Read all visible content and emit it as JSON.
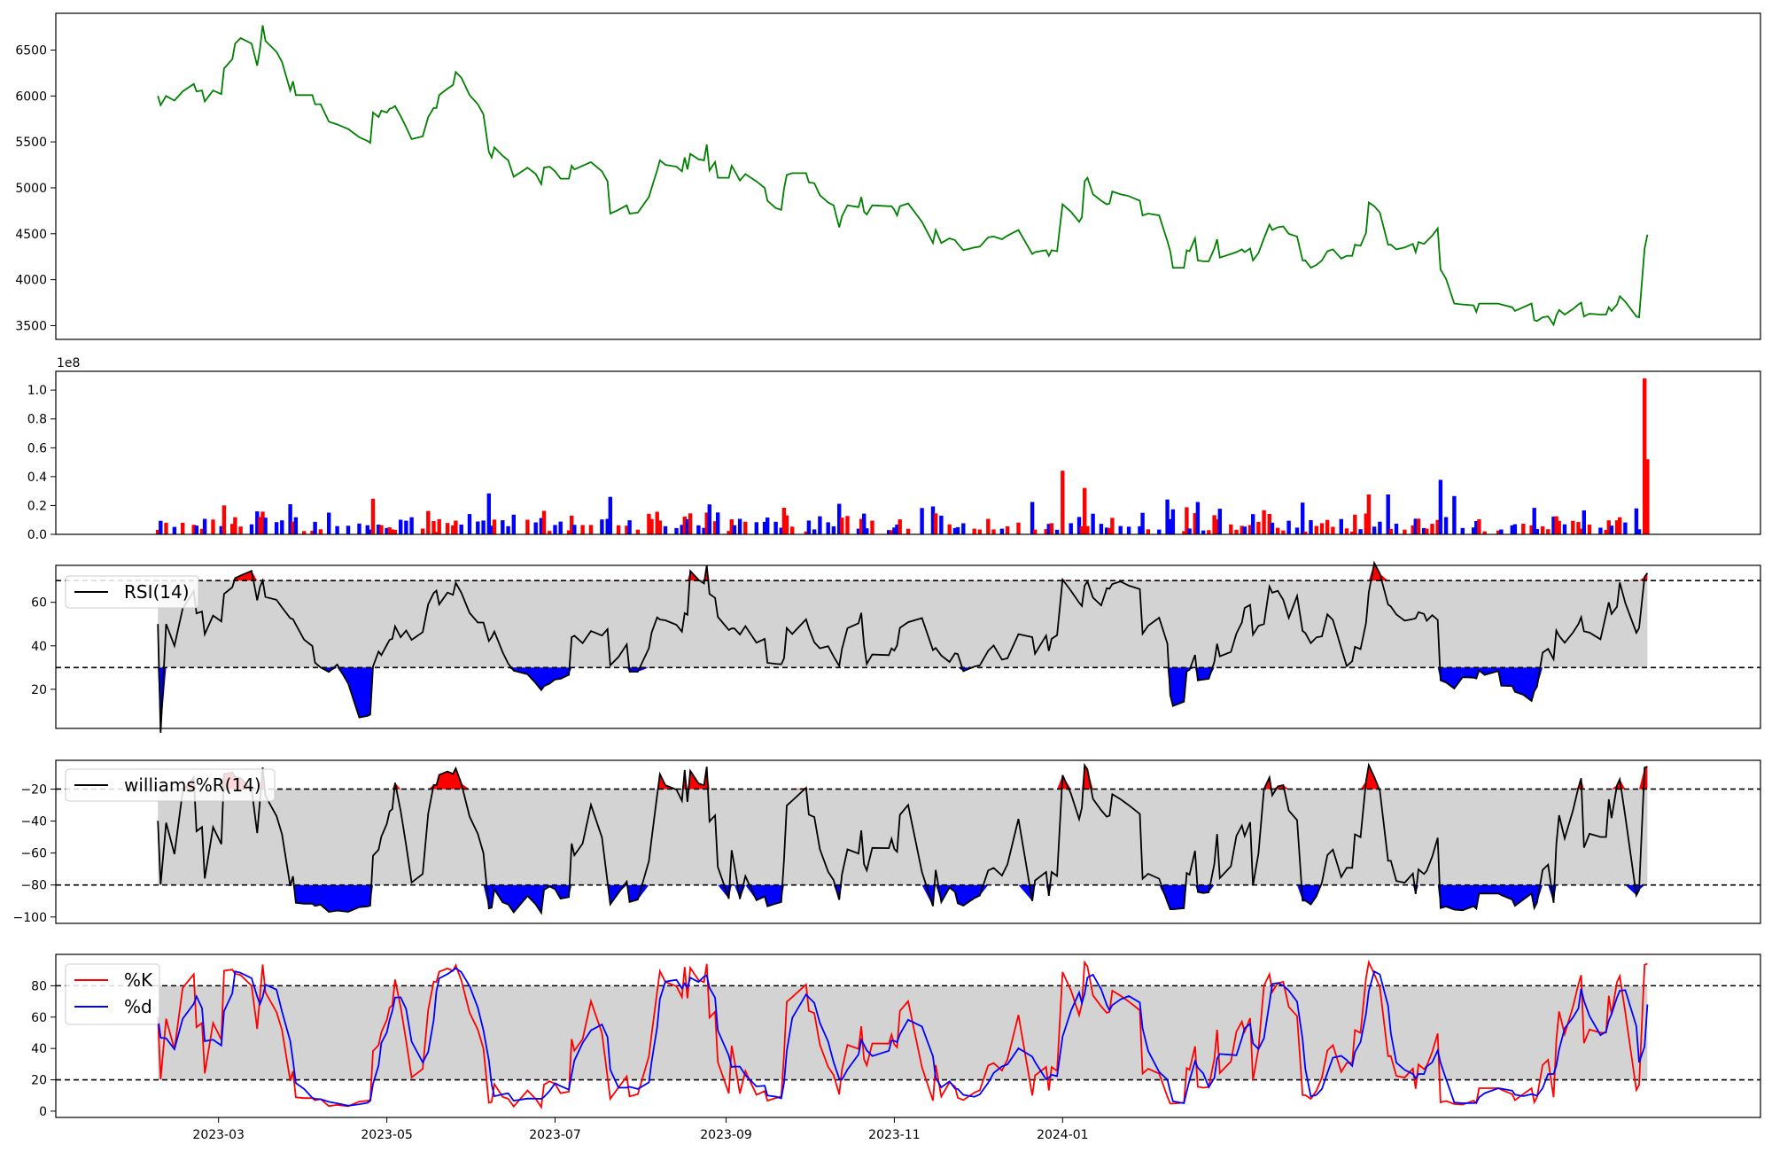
{
  "chart_data": [
    {
      "type": "line",
      "name": "price",
      "color": "#008000",
      "ylim": [
        3350,
        6900
      ],
      "yticks": [
        3500,
        4000,
        4500,
        5000,
        5500,
        6000,
        6500
      ],
      "ytick_labels": [
        "3500",
        "4000",
        "4500",
        "5000",
        "5500",
        "6000",
        "6500"
      ],
      "points": [
        [
          "2023-02-07",
          6000
        ],
        [
          "2023-02-08",
          5900
        ],
        [
          "2023-02-10",
          6000
        ],
        [
          "2023-02-13",
          5950
        ],
        [
          "2023-02-16",
          6050
        ],
        [
          "2023-02-20",
          6130
        ],
        [
          "2023-02-21",
          6050
        ],
        [
          "2023-02-23",
          6060
        ],
        [
          "2023-02-24",
          5940
        ],
        [
          "2023-02-27",
          6060
        ],
        [
          "2023-03-02",
          6020
        ],
        [
          "2023-03-03",
          6300
        ],
        [
          "2023-03-06",
          6400
        ],
        [
          "2023-03-07",
          6570
        ],
        [
          "2023-03-09",
          6630
        ],
        [
          "2023-03-13",
          6570
        ],
        [
          "2023-03-15",
          6330
        ],
        [
          "2023-03-16",
          6510
        ],
        [
          "2023-03-17",
          6770
        ],
        [
          "2023-03-18",
          6600
        ],
        [
          "2023-03-22",
          6480
        ],
        [
          "2023-03-24",
          6370
        ],
        [
          "2023-03-27",
          6060
        ],
        [
          "2023-03-28",
          6160
        ],
        [
          "2023-03-29",
          6010
        ],
        [
          "2023-04-01",
          6010
        ],
        [
          "2023-04-04",
          6010
        ],
        [
          "2023-04-05",
          5910
        ],
        [
          "2023-04-07",
          5910
        ],
        [
          "2023-04-10",
          5720
        ],
        [
          "2023-04-13",
          5690
        ],
        [
          "2023-04-17",
          5640
        ],
        [
          "2023-04-21",
          5550
        ],
        [
          "2023-04-24",
          5510
        ],
        [
          "2023-04-25",
          5490
        ],
        [
          "2023-04-26",
          5820
        ],
        [
          "2023-04-28",
          5770
        ],
        [
          "2023-04-29",
          5840
        ],
        [
          "2023-05-01",
          5820
        ],
        [
          "2023-05-02",
          5860
        ],
        [
          "2023-05-03",
          5870
        ],
        [
          "2023-05-04",
          5890
        ],
        [
          "2023-05-06",
          5780
        ],
        [
          "2023-05-08",
          5660
        ],
        [
          "2023-05-10",
          5530
        ],
        [
          "2023-05-14",
          5560
        ],
        [
          "2023-05-16",
          5770
        ],
        [
          "2023-05-18",
          5870
        ],
        [
          "2023-05-19",
          5870
        ],
        [
          "2023-05-20",
          6010
        ],
        [
          "2023-05-23",
          6080
        ],
        [
          "2023-05-25",
          6120
        ],
        [
          "2023-05-26",
          6260
        ],
        [
          "2023-05-28",
          6200
        ],
        [
          "2023-05-31",
          6010
        ],
        [
          "2023-06-03",
          5910
        ],
        [
          "2023-06-05",
          5800
        ],
        [
          "2023-06-07",
          5390
        ],
        [
          "2023-06-08",
          5330
        ],
        [
          "2023-06-09",
          5440
        ],
        [
          "2023-06-12",
          5350
        ],
        [
          "2023-06-14",
          5300
        ],
        [
          "2023-06-16",
          5120
        ],
        [
          "2023-06-21",
          5220
        ],
        [
          "2023-06-24",
          5150
        ],
        [
          "2023-06-26",
          5040
        ],
        [
          "2023-06-27",
          5220
        ],
        [
          "2023-06-29",
          5230
        ],
        [
          "2023-07-01",
          5180
        ],
        [
          "2023-07-03",
          5100
        ],
        [
          "2023-07-06",
          5100
        ],
        [
          "2023-07-07",
          5240
        ],
        [
          "2023-07-08",
          5200
        ],
        [
          "2023-07-11",
          5240
        ],
        [
          "2023-07-14",
          5280
        ],
        [
          "2023-07-18",
          5180
        ],
        [
          "2023-07-20",
          5070
        ],
        [
          "2023-07-21",
          4720
        ],
        [
          "2023-07-24",
          4760
        ],
        [
          "2023-07-27",
          4810
        ],
        [
          "2023-07-28",
          4720
        ],
        [
          "2023-07-31",
          4730
        ],
        [
          "2023-08-04",
          4900
        ],
        [
          "2023-08-05",
          5000
        ],
        [
          "2023-08-07",
          5190
        ],
        [
          "2023-08-08",
          5300
        ],
        [
          "2023-08-10",
          5250
        ],
        [
          "2023-08-14",
          5230
        ],
        [
          "2023-08-16",
          5180
        ],
        [
          "2023-08-17",
          5330
        ],
        [
          "2023-08-18",
          5200
        ],
        [
          "2023-08-19",
          5370
        ],
        [
          "2023-08-22",
          5310
        ],
        [
          "2023-08-24",
          5300
        ],
        [
          "2023-08-25",
          5470
        ],
        [
          "2023-08-26",
          5190
        ],
        [
          "2023-08-28",
          5280
        ],
        [
          "2023-08-29",
          5110
        ],
        [
          "2023-09-02",
          5110
        ],
        [
          "2023-09-03",
          5240
        ],
        [
          "2023-09-04",
          5190
        ],
        [
          "2023-09-06",
          5080
        ],
        [
          "2023-09-08",
          5150
        ],
        [
          "2023-09-12",
          5070
        ],
        [
          "2023-09-15",
          5000
        ],
        [
          "2023-09-16",
          4860
        ],
        [
          "2023-09-19",
          4780
        ],
        [
          "2023-09-21",
          4760
        ],
        [
          "2023-09-22",
          4990
        ],
        [
          "2023-09-23",
          5140
        ],
        [
          "2023-09-25",
          5160
        ],
        [
          "2023-09-30",
          5160
        ],
        [
          "2023-10-01",
          5060
        ],
        [
          "2023-10-03",
          5050
        ],
        [
          "2023-10-05",
          4920
        ],
        [
          "2023-10-08",
          4840
        ],
        [
          "2023-10-10",
          4810
        ],
        [
          "2023-10-12",
          4570
        ],
        [
          "2023-10-13",
          4690
        ],
        [
          "2023-10-15",
          4810
        ],
        [
          "2023-10-19",
          4790
        ],
        [
          "2023-10-20",
          4900
        ],
        [
          "2023-10-21",
          4740
        ],
        [
          "2023-10-22",
          4710
        ],
        [
          "2023-10-24",
          4810
        ],
        [
          "2023-10-30",
          4800
        ],
        [
          "2023-10-31",
          4800
        ],
        [
          "2023-11-01",
          4760
        ],
        [
          "2023-11-02",
          4700
        ],
        [
          "2023-11-03",
          4800
        ],
        [
          "2023-11-06",
          4830
        ],
        [
          "2023-11-11",
          4630
        ],
        [
          "2023-11-15",
          4400
        ],
        [
          "2023-11-16",
          4540
        ],
        [
          "2023-11-18",
          4400
        ],
        [
          "2023-11-21",
          4450
        ],
        [
          "2023-11-23",
          4430
        ],
        [
          "2023-11-24",
          4390
        ],
        [
          "2023-11-26",
          4320
        ],
        [
          "2023-11-30",
          4350
        ],
        [
          "2023-12-02",
          4360
        ],
        [
          "2023-12-05",
          4460
        ],
        [
          "2023-12-07",
          4470
        ],
        [
          "2023-12-10",
          4440
        ],
        [
          "2023-12-12",
          4480
        ],
        [
          "2023-12-16",
          4540
        ],
        [
          "2023-12-21",
          4280
        ],
        [
          "2023-12-22",
          4300
        ],
        [
          "2023-12-26",
          4320
        ],
        [
          "2023-12-27",
          4260
        ],
        [
          "2023-12-28",
          4320
        ],
        [
          "2023-12-30",
          4310
        ],
        [
          "2024-01-01",
          4820
        ],
        [
          "2024-01-04",
          4740
        ],
        [
          "2024-01-07",
          4630
        ],
        [
          "2024-01-08",
          4680
        ],
        [
          "2024-01-09",
          5070
        ],
        [
          "2024-01-10",
          5110
        ],
        [
          "2024-01-12",
          4930
        ],
        [
          "2024-01-15",
          4860
        ],
        [
          "2024-01-17",
          4820
        ],
        [
          "2024-01-18",
          4830
        ],
        [
          "2024-01-19",
          4960
        ],
        [
          "2024-01-22",
          4930
        ],
        [
          "2024-01-25",
          4910
        ],
        [
          "2024-01-29",
          4860
        ],
        [
          "2024-01-30",
          4700
        ],
        [
          "2024-02-01",
          4720
        ],
        [
          "2024-02-05",
          4700
        ],
        [
          "2024-02-08",
          4420
        ],
        [
          "2024-02-09",
          4310
        ],
        [
          "2024-02-10",
          4130
        ],
        [
          "2024-02-14",
          4130
        ],
        [
          "2024-02-15",
          4320
        ],
        [
          "2024-02-16",
          4310
        ],
        [
          "2024-02-18",
          4450
        ],
        [
          "2024-02-19",
          4210
        ],
        [
          "2024-02-21",
          4200
        ],
        [
          "2024-02-23",
          4200
        ],
        [
          "2024-02-25",
          4340
        ],
        [
          "2024-02-26",
          4440
        ],
        [
          "2024-02-27",
          4240
        ],
        [
          "2024-03-02",
          4280
        ],
        [
          "2024-03-04",
          4300
        ],
        [
          "2024-03-06",
          4330
        ],
        [
          "2024-03-07",
          4300
        ],
        [
          "2024-03-09",
          4340
        ],
        [
          "2024-03-10",
          4210
        ],
        [
          "2024-03-12",
          4290
        ],
        [
          "2024-03-14",
          4450
        ],
        [
          "2024-03-16",
          4600
        ],
        [
          "2024-03-17",
          4540
        ],
        [
          "2024-03-19",
          4570
        ],
        [
          "2024-03-21",
          4580
        ],
        [
          "2024-03-23",
          4500
        ],
        [
          "2024-03-26",
          4470
        ],
        [
          "2024-03-28",
          4210
        ],
        [
          "2024-03-29",
          4210
        ],
        [
          "2024-03-31",
          4130
        ],
        [
          "2024-04-02",
          4160
        ],
        [
          "2024-04-04",
          4210
        ],
        [
          "2024-04-06",
          4310
        ],
        [
          "2024-04-08",
          4330
        ],
        [
          "2024-04-11",
          4230
        ],
        [
          "2024-04-13",
          4260
        ],
        [
          "2024-04-15",
          4260
        ],
        [
          "2024-04-16",
          4380
        ],
        [
          "2024-04-18",
          4370
        ],
        [
          "2024-04-20",
          4510
        ],
        [
          "2024-04-21",
          4840
        ],
        [
          "2024-04-23",
          4800
        ],
        [
          "2024-04-25",
          4730
        ],
        [
          "2024-04-28",
          4380
        ],
        [
          "2024-04-29",
          4380
        ],
        [
          "2024-05-01",
          4330
        ],
        [
          "2024-05-04",
          4350
        ],
        [
          "2024-05-07",
          4390
        ],
        [
          "2024-05-08",
          4300
        ],
        [
          "2024-05-09",
          4410
        ],
        [
          "2024-05-11",
          4390
        ],
        [
          "2024-05-12",
          4420
        ],
        [
          "2024-05-14",
          4480
        ],
        [
          "2024-05-16",
          4560
        ],
        [
          "2024-05-17",
          4110
        ],
        [
          "2024-05-19",
          4010
        ],
        [
          "2024-05-22",
          3740
        ],
        [
          "2024-05-25",
          3730
        ],
        [
          "2024-05-29",
          3720
        ],
        [
          "2024-05-30",
          3650
        ],
        [
          "2024-05-31",
          3740
        ],
        [
          "2024-06-02",
          3740
        ],
        [
          "2024-06-07",
          3740
        ],
        [
          "2024-06-08",
          3730
        ],
        [
          "2024-06-12",
          3700
        ],
        [
          "2024-06-13",
          3660
        ],
        [
          "2024-06-16",
          3700
        ],
        [
          "2024-06-19",
          3740
        ],
        [
          "2024-06-20",
          3560
        ],
        [
          "2024-06-21",
          3550
        ],
        [
          "2024-06-23",
          3590
        ],
        [
          "2024-06-25",
          3600
        ],
        [
          "2024-06-27",
          3510
        ],
        [
          "2024-06-28",
          3610
        ],
        [
          "2024-06-29",
          3670
        ],
        [
          "2024-07-01",
          3620
        ],
        [
          "2024-07-04",
          3680
        ],
        [
          "2024-07-06",
          3730
        ],
        [
          "2024-07-07",
          3750
        ],
        [
          "2024-07-08",
          3600
        ],
        [
          "2024-07-10",
          3630
        ],
        [
          "2024-07-14",
          3620
        ],
        [
          "2024-07-16",
          3620
        ],
        [
          "2024-07-17",
          3700
        ],
        [
          "2024-07-18",
          3660
        ],
        [
          "2024-07-20",
          3730
        ],
        [
          "2024-07-21",
          3820
        ],
        [
          "2024-07-23",
          3760
        ],
        [
          "2024-07-27",
          3600
        ],
        [
          "2024-07-28",
          3590
        ],
        [
          "2024-07-30",
          4340
        ],
        [
          "2024-07-31",
          4490
        ]
      ]
    },
    {
      "type": "bar",
      "name": "volume",
      "offset_label": "1e8",
      "scale": 100000000,
      "ylim": [
        0,
        1.13
      ],
      "yticks": [
        0,
        0.2,
        0.4,
        0.6,
        0.8,
        1.0
      ],
      "ytick_labels": [
        "0.0",
        "0.2",
        "0.4",
        "0.6",
        "0.8",
        "1.0"
      ],
      "up_color": "#ff0000",
      "down_color": "#0000ff"
    },
    {
      "type": "line",
      "name": "rsi",
      "legend": "RSI(14)",
      "color": "#000000",
      "band_color": "#d3d3d3",
      "upper": 70,
      "lower": 30,
      "upper_fill": "#ff0000",
      "lower_fill": "#0000ff",
      "ylim": [
        2,
        77
      ],
      "yticks": [
        20,
        40,
        60
      ],
      "ytick_labels": [
        "20",
        "40",
        "60"
      ]
    },
    {
      "type": "line",
      "name": "williams",
      "legend": "williams%R(14)",
      "color": "#000000",
      "band_color": "#d3d3d3",
      "upper": -20,
      "lower": -80,
      "upper_fill": "#ff0000",
      "lower_fill": "#0000ff",
      "ylim": [
        -104,
        -2
      ],
      "yticks": [
        -100,
        -80,
        -60,
        -40,
        -20
      ],
      "ytick_labels": [
        "−100",
        "−80",
        "−60",
        "−40",
        "−20"
      ]
    },
    {
      "type": "line",
      "name": "stochastic",
      "legend_k": "%K",
      "legend_d": "%d",
      "k_color": "#ff0000",
      "d_color": "#0000ff",
      "band_color": "#d3d3d3",
      "upper": 80,
      "lower": 20,
      "ylim": [
        -4,
        100
      ],
      "yticks": [
        0,
        20,
        40,
        60,
        80
      ],
      "ytick_labels": [
        "0",
        "20",
        "40",
        "60",
        "80"
      ]
    }
  ],
  "x_axis": {
    "range": [
      "2023-01-01",
      "2024-09-10"
    ],
    "ticks": [
      "2023-03-01",
      "2023-05-01",
      "2023-07-01",
      "2023-09-01",
      "2023-11-01",
      "2024-01-01"
    ],
    "tick_labels": [
      "2023-03",
      "2023-05",
      "2023-07",
      "2023-09",
      "2023-11",
      "2024-01"
    ]
  }
}
